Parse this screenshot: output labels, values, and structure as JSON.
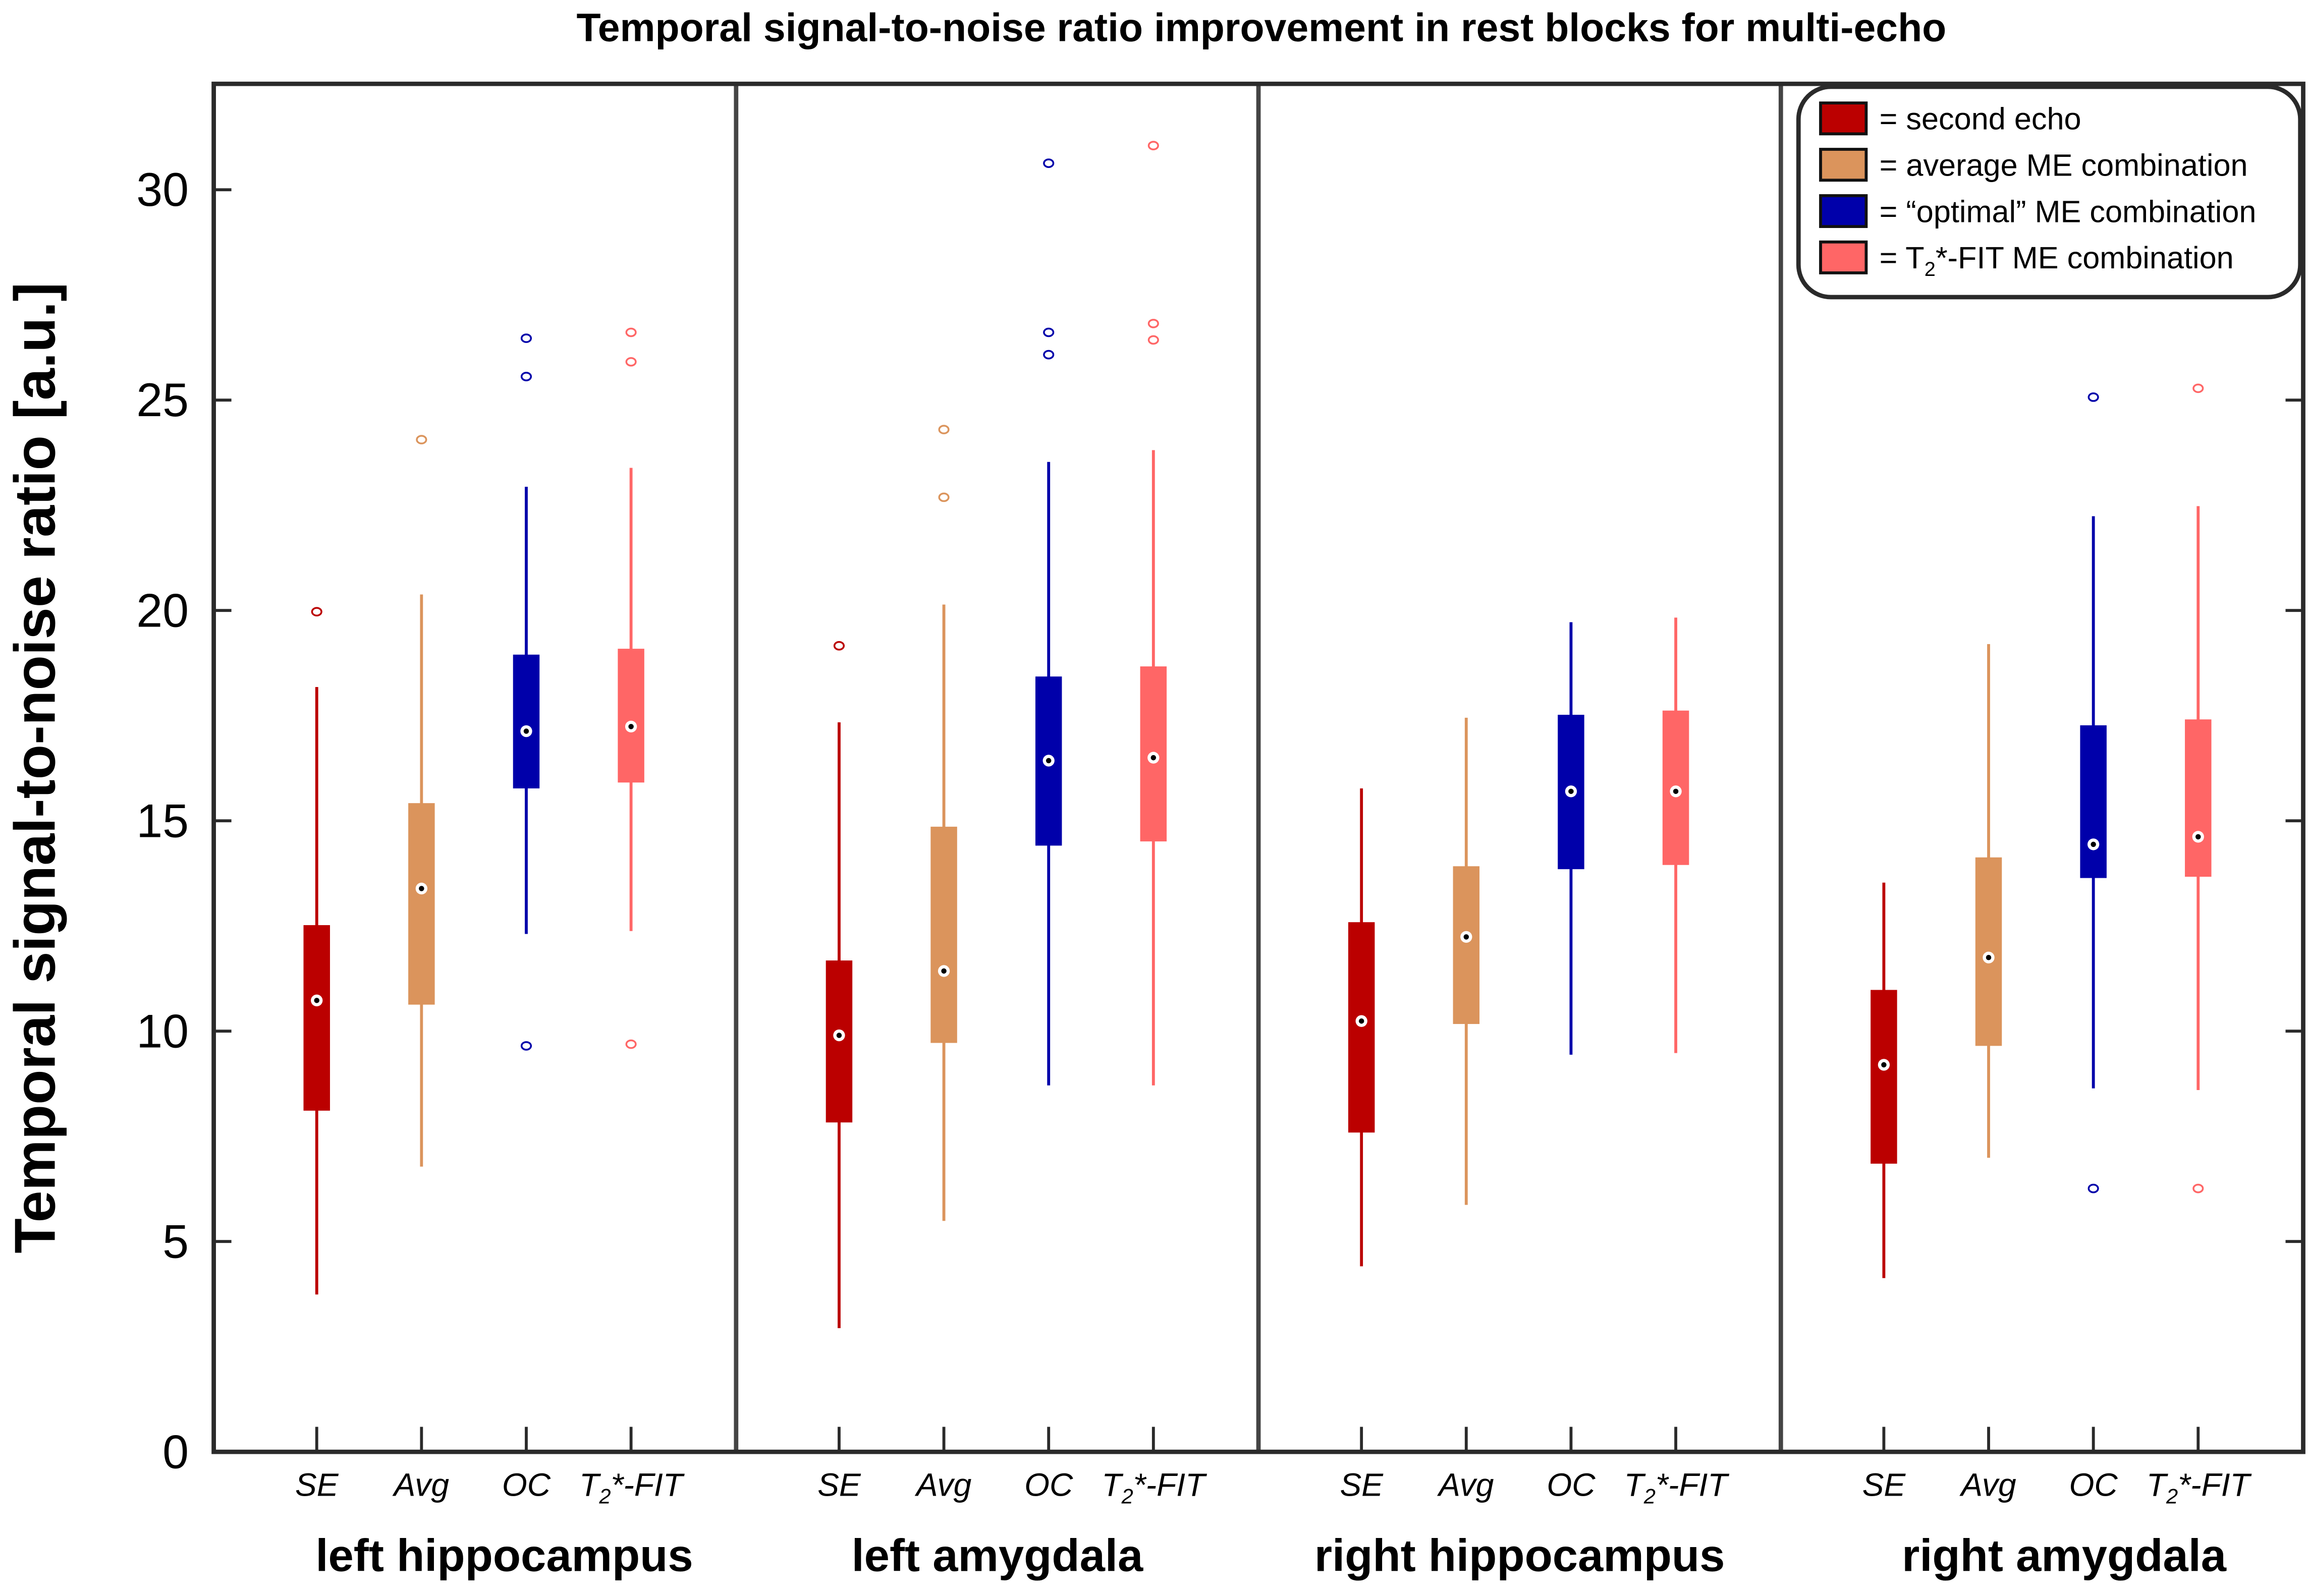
{
  "chart_data": {
    "type": "boxplot",
    "title": "Temporal signal-to-noise ratio improvement in rest blocks for multi-echo",
    "ylabel": "Temporal signal-to-noise ratio [a.u.]",
    "xlabel": "",
    "ylim": [
      0,
      32.5
    ],
    "yticks": [
      0,
      5,
      10,
      15,
      20,
      25,
      30
    ],
    "grid": false,
    "legend_position": "top-right",
    "categories": [
      "SE",
      "Avg",
      "OC",
      "T2*-FIT"
    ],
    "series": [
      {
        "name": "second echo",
        "legend": "= second echo",
        "color": "#bb0000"
      },
      {
        "name": "average ME combination",
        "legend": "= average ME combination",
        "color": "#db945c"
      },
      {
        "name": "optimal ME combination",
        "legend": "= “optimal” ME combination",
        "color": "#0000aa"
      },
      {
        "name": "T2*-FIT ME combination",
        "legend": "= T2*-FIT ME combination",
        "color": "#ff6666"
      }
    ],
    "groups": [
      {
        "label": "left hippocampus",
        "boxes": [
          {
            "whisker_low": 3.74,
            "q1": 8.11,
            "median": 10.73,
            "q3": 12.52,
            "whisker_high": 18.18,
            "outliers": [
              19.97
            ]
          },
          {
            "whisker_low": 6.78,
            "q1": 10.63,
            "median": 13.39,
            "q3": 15.42,
            "whisker_high": 20.38,
            "outliers": [
              24.06
            ]
          },
          {
            "whisker_low": 12.31,
            "q1": 15.77,
            "median": 17.13,
            "q3": 18.95,
            "whisker_high": 22.94,
            "outliers": [
              26.47,
              25.56,
              9.65
            ]
          },
          {
            "whisker_low": 12.38,
            "q1": 15.91,
            "median": 17.24,
            "q3": 19.09,
            "whisker_high": 23.39,
            "outliers": [
              26.61,
              25.91,
              9.69
            ]
          }
        ]
      },
      {
        "label": "left amygdala",
        "boxes": [
          {
            "whisker_low": 2.94,
            "q1": 7.83,
            "median": 9.9,
            "q3": 11.68,
            "whisker_high": 17.34,
            "outliers": [
              19.16
            ]
          },
          {
            "whisker_low": 5.49,
            "q1": 9.72,
            "median": 11.43,
            "q3": 14.86,
            "whisker_high": 20.14,
            "outliers": [
              24.3,
              22.69
            ]
          },
          {
            "whisker_low": 8.71,
            "q1": 14.41,
            "median": 16.43,
            "q3": 18.43,
            "whisker_high": 23.53,
            "outliers": [
              30.63,
              26.61,
              26.08
            ]
          },
          {
            "whisker_low": 8.71,
            "q1": 14.51,
            "median": 16.5,
            "q3": 18.67,
            "whisker_high": 23.81,
            "outliers": [
              31.05,
              26.82,
              26.43
            ]
          }
        ]
      },
      {
        "label": "right hippocampus",
        "boxes": [
          {
            "whisker_low": 4.41,
            "q1": 7.59,
            "median": 10.24,
            "q3": 12.59,
            "whisker_high": 15.77,
            "outliers": []
          },
          {
            "whisker_low": 5.87,
            "q1": 10.17,
            "median": 12.24,
            "q3": 13.92,
            "whisker_high": 17.45,
            "outliers": []
          },
          {
            "whisker_low": 9.44,
            "q1": 13.85,
            "median": 15.7,
            "q3": 17.52,
            "whisker_high": 19.72,
            "outliers": []
          },
          {
            "whisker_low": 9.48,
            "q1": 13.95,
            "median": 15.7,
            "q3": 17.62,
            "whisker_high": 19.83,
            "outliers": []
          }
        ]
      },
      {
        "label": "right amygdala",
        "boxes": [
          {
            "whisker_low": 4.13,
            "q1": 6.85,
            "median": 9.2,
            "q3": 10.98,
            "whisker_high": 13.53,
            "outliers": []
          },
          {
            "whisker_low": 6.99,
            "q1": 9.65,
            "median": 11.75,
            "q3": 14.13,
            "whisker_high": 19.2,
            "outliers": []
          },
          {
            "whisker_low": 8.64,
            "q1": 13.64,
            "median": 14.44,
            "q3": 17.27,
            "whisker_high": 22.24,
            "outliers": [
              25.07,
              6.26
            ]
          },
          {
            "whisker_low": 8.6,
            "q1": 13.67,
            "median": 14.62,
            "q3": 17.41,
            "whisker_high": 22.48,
            "outliers": [
              25.28,
              6.26
            ]
          }
        ]
      }
    ]
  }
}
